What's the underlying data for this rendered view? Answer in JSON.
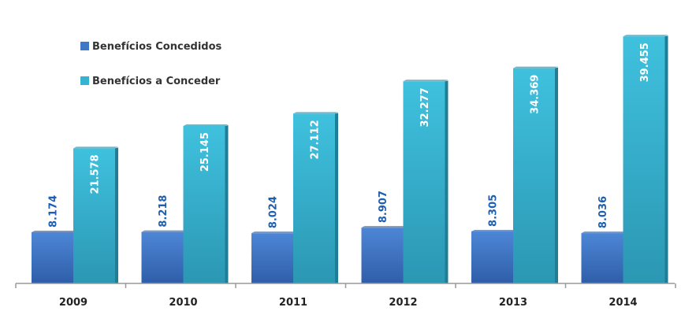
{
  "chart_data": {
    "type": "bar",
    "categories": [
      "2009",
      "2010",
      "2011",
      "2012",
      "2013",
      "2014"
    ],
    "series": [
      {
        "name": "Benefícios Concedidos",
        "values": [
          8.174,
          8.218,
          8.024,
          8.907,
          8.305,
          8.036
        ],
        "labels": [
          "8.174",
          "8.218",
          "8.024",
          "8.907",
          "8.305",
          "8.036"
        ],
        "color": "#3f78c9"
      },
      {
        "name": "Benefícios a Conceder",
        "values": [
          21.578,
          25.145,
          27.112,
          32.277,
          34.369,
          39.455
        ],
        "labels": [
          "21.578",
          "25.145",
          "27.112",
          "32.277",
          "34.369",
          "39.455"
        ],
        "color": "#35b4d2"
      }
    ],
    "ylim": [
      0,
      43
    ],
    "grid": false,
    "legend": "top-left"
  }
}
